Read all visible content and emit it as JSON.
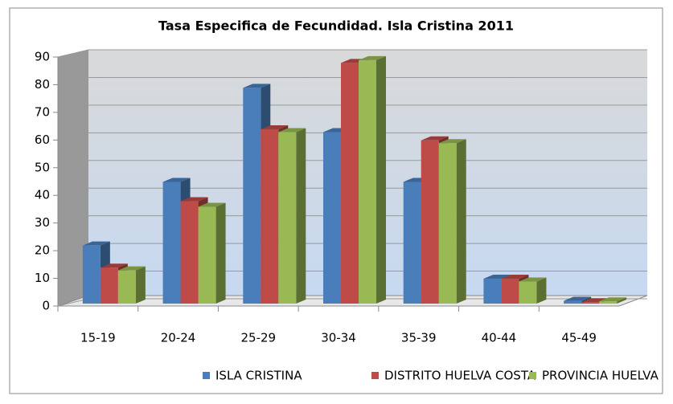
{
  "chart_data": {
    "type": "bar3d",
    "title": "Tasa Especifica de Fecundidad. Isla Cristina 2011",
    "categories": [
      "15-19",
      "20-24",
      "25-29",
      "30-34",
      "35-39",
      "40-44",
      "45-49"
    ],
    "series": [
      {
        "name": "ISLA CRISTINA",
        "color": "#4a7ebb",
        "values": [
          21,
          44,
          78,
          62,
          44,
          9,
          1
        ]
      },
      {
        "name": "DISTRITO HUELVA COSTA",
        "color": "#be4b48",
        "values": [
          13,
          37,
          63,
          87,
          59,
          9,
          0.5
        ]
      },
      {
        "name": "PROVINCIA HUELVA",
        "color": "#98b954",
        "values": [
          12,
          35,
          62,
          88,
          58,
          8,
          0.8
        ]
      }
    ],
    "ylim": [
      0,
      90
    ],
    "yticks": [
      0,
      10,
      20,
      30,
      40,
      50,
      60,
      70,
      80,
      90
    ],
    "grid": true,
    "legend": "bottom"
  }
}
